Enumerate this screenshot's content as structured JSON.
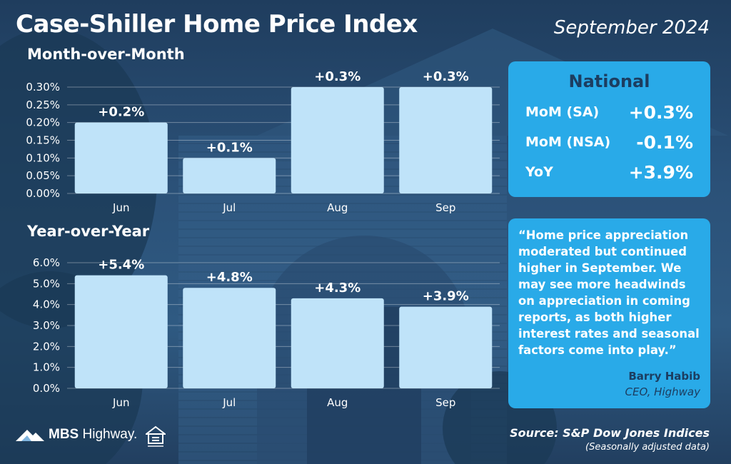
{
  "header": {
    "title": "Case-Shiller Home Price Index",
    "date": "September 2024"
  },
  "chart_data": [
    {
      "type": "bar",
      "title": "Month-over-Month",
      "categories": [
        "Jun",
        "Jul",
        "Aug",
        "Sep"
      ],
      "values": [
        0.2,
        0.1,
        0.3,
        0.3
      ],
      "data_labels": [
        "+0.2%",
        "+0.1%",
        "+0.3%",
        "+0.3%"
      ],
      "yticks": [
        "0.00%",
        "0.05%",
        "0.10%",
        "0.15%",
        "0.20%",
        "0.25%",
        "0.30%"
      ],
      "ylim": [
        0,
        0.3
      ],
      "grid": true,
      "bar_color": "#bfe3f9"
    },
    {
      "type": "bar",
      "title": "Year-over-Year",
      "categories": [
        "Jun",
        "Jul",
        "Aug",
        "Sep"
      ],
      "values": [
        5.4,
        4.8,
        4.3,
        3.9
      ],
      "data_labels": [
        "+5.4%",
        "+4.8%",
        "+4.3%",
        "+3.9%"
      ],
      "yticks": [
        "0.0%",
        "1.0%",
        "2.0%",
        "3.0%",
        "4.0%",
        "5.0%",
        "6.0%"
      ],
      "ylim": [
        0,
        6.0
      ],
      "grid": true,
      "bar_color": "#bfe3f9"
    }
  ],
  "national": {
    "title": "National",
    "rows": [
      {
        "label": "MoM (SA)",
        "value": "+0.3%"
      },
      {
        "label": "MoM (NSA)",
        "value": "-0.1%"
      },
      {
        "label": "YoY",
        "value": "+3.9%"
      }
    ],
    "accent": "#29aae8"
  },
  "quote": {
    "text": "“Home price appreciation moderated but continued higher in September. We may see more headwinds on appreciation in coming reports, as both higher interest rates and seasonal factors come into play.”",
    "author": "Barry Habib",
    "role": "CEO, Highway"
  },
  "footer": {
    "brand_bold": "MBS",
    "brand_rest": " Highway.",
    "source": "Source: S&P Dow Jones Indices",
    "note": "(Seasonally adjusted data)"
  }
}
